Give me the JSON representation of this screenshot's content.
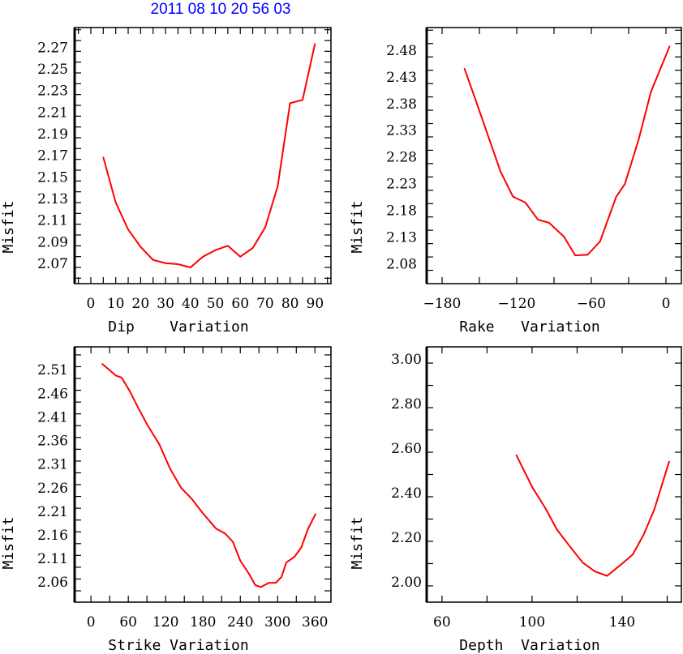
{
  "title": "2011 08 10 20 56 03",
  "colors": {
    "line": "#ff0000",
    "title": "#0000ff",
    "axis": "#000000"
  },
  "chart_data": [
    {
      "type": "line",
      "xlabel": "Dip    Variation",
      "ylabel": "Misfit",
      "xlim": [
        -6.5,
        96.4
      ],
      "ylim": [
        2.055,
        2.292
      ],
      "xticks": [
        0,
        10,
        20,
        30,
        40,
        50,
        60,
        70,
        80,
        90
      ],
      "xtick_labels": [
        "0",
        "10",
        "20",
        "30",
        "40",
        "50",
        "60",
        "70",
        "80",
        "90"
      ],
      "xminor": 5,
      "yticks": [
        2.07,
        2.09,
        2.11,
        2.13,
        2.15,
        2.17,
        2.19,
        2.21,
        2.23,
        2.25,
        2.27
      ],
      "ytick_labels": [
        "2.07",
        "2.09",
        "2.11",
        "2.13",
        "2.15",
        "2.17",
        "2.19",
        "2.21",
        "2.23",
        "2.25",
        "2.27"
      ],
      "yminor": 0.01,
      "x": [
        5,
        10,
        15,
        20,
        25,
        30,
        35,
        40,
        45,
        50,
        55,
        60,
        65,
        70,
        75,
        80,
        85,
        90
      ],
      "y": [
        2.172,
        2.13,
        2.105,
        2.089,
        2.077,
        2.074,
        2.073,
        2.07,
        2.08,
        2.086,
        2.09,
        2.08,
        2.088,
        2.107,
        2.145,
        2.222,
        2.225,
        2.277
      ]
    },
    {
      "type": "line",
      "xlabel": "Rake   Variation",
      "ylabel": "Misfit",
      "xlim": [
        -192.4,
        12.4
      ],
      "ylim": [
        2.05,
        2.53
      ],
      "xticks": [
        -180,
        -120,
        -60,
        0
      ],
      "xtick_labels": [
        "−180",
        "−120",
        "−60",
        "0"
      ],
      "xminor": 30,
      "yticks": [
        2.08,
        2.13,
        2.18,
        2.23,
        2.28,
        2.33,
        2.38,
        2.43,
        2.48
      ],
      "ytick_labels": [
        "2.08",
        "2.13",
        "2.18",
        "2.23",
        "2.28",
        "2.33",
        "2.38",
        "2.43",
        "2.48"
      ],
      "yminor": 0.025,
      "x": [
        -162,
        -153,
        -133,
        -123,
        -113,
        -103,
        -94,
        -82,
        -73,
        -63,
        -53,
        -40,
        -33,
        -22,
        -12,
        3
      ],
      "y": [
        2.453,
        2.394,
        2.26,
        2.213,
        2.202,
        2.17,
        2.164,
        2.138,
        2.103,
        2.104,
        2.129,
        2.213,
        2.237,
        2.32,
        2.41,
        2.495
      ]
    },
    {
      "type": "line",
      "xlabel": "Strike Variation",
      "ylabel": "Misfit",
      "xlim": [
        -26.3,
        385.7
      ],
      "ylim": [
        2.026,
        2.567
      ],
      "xticks": [
        0,
        60,
        120,
        180,
        240,
        300,
        360
      ],
      "xtick_labels": [
        "0",
        "60",
        "120",
        "180",
        "240",
        "300",
        "360"
      ],
      "xminor": 30,
      "yticks": [
        2.06,
        2.11,
        2.16,
        2.21,
        2.26,
        2.31,
        2.36,
        2.41,
        2.46,
        2.51
      ],
      "ytick_labels": [
        "2.06",
        "2.11",
        "2.16",
        "2.21",
        "2.26",
        "2.31",
        "2.36",
        "2.41",
        "2.46",
        "2.51"
      ],
      "yminor": 0.025,
      "x": [
        18,
        40,
        49,
        62,
        75,
        90,
        110,
        127,
        145,
        162,
        180,
        201,
        216,
        228,
        240,
        254,
        264,
        273,
        286,
        297,
        306,
        314,
        327,
        338,
        349,
        361
      ],
      "y": [
        2.531,
        2.506,
        2.502,
        2.474,
        2.44,
        2.403,
        2.36,
        2.309,
        2.268,
        2.245,
        2.214,
        2.182,
        2.171,
        2.154,
        2.114,
        2.086,
        2.062,
        2.058,
        2.067,
        2.067,
        2.079,
        2.11,
        2.122,
        2.142,
        2.182,
        2.213
      ]
    },
    {
      "type": "line",
      "xlabel": "Depth  Variation",
      "ylabel": "Misfit",
      "xlim": [
        53.2,
        166.3
      ],
      "ylim": [
        1.927,
        3.073
      ],
      "xticks": [
        60,
        100,
        140
      ],
      "xtick_labels": [
        "60",
        "100",
        "140"
      ],
      "xminor": 20,
      "yticks": [
        2.0,
        2.2,
        2.4,
        2.6,
        2.8,
        3.0
      ],
      "ytick_labels": [
        "2.00",
        "2.20",
        "2.40",
        "2.60",
        "2.80",
        "3.00"
      ],
      "yminor": 0.1,
      "x": [
        93,
        100.2,
        106.2,
        111,
        116.5,
        122.5,
        127.9,
        133.3,
        139.9,
        144.7,
        149.5,
        154.3,
        160.9
      ],
      "y": [
        2.587,
        2.441,
        2.344,
        2.253,
        2.181,
        2.104,
        2.065,
        2.045,
        2.099,
        2.141,
        2.229,
        2.344,
        2.559
      ]
    }
  ]
}
